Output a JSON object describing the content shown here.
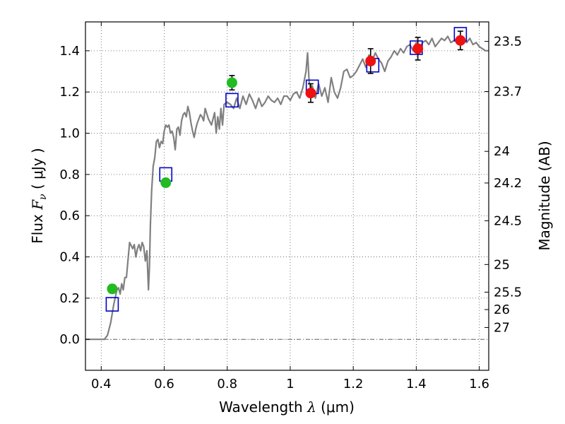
{
  "chart_data": {
    "type": "scatter",
    "xlabel": {
      "prefix": "Wavelength ",
      "symbol": "λ",
      "unit": " (μm)"
    },
    "ylabel": {
      "prefix": "Flux ",
      "symbol": "F",
      "subscript": "ν",
      "unit": " ( μJy )"
    },
    "y2label": "Magnitude (AB)",
    "xlim": [
      0.35,
      1.63
    ],
    "ylim": [
      -0.15,
      1.54
    ],
    "x_ticks": [
      {
        "value": 0.4,
        "label": "0.4"
      },
      {
        "value": 0.6,
        "label": "0.6"
      },
      {
        "value": 0.8,
        "label": "0.8"
      },
      {
        "value": 1.0,
        "label": "1"
      },
      {
        "value": 1.2,
        "label": "1.2"
      },
      {
        "value": 1.4,
        "label": "1.4"
      },
      {
        "value": 1.6,
        "label": "1.6"
      }
    ],
    "y_ticks": [
      {
        "value": 0.0,
        "label": "0.0"
      },
      {
        "value": 0.2,
        "label": "0.2"
      },
      {
        "value": 0.4,
        "label": "0.4"
      },
      {
        "value": 0.6,
        "label": "0.6"
      },
      {
        "value": 0.8,
        "label": "0.8"
      },
      {
        "value": 1.0,
        "label": "1.0"
      },
      {
        "value": 1.2,
        "label": "1.2"
      },
      {
        "value": 1.4,
        "label": "1.4"
      }
    ],
    "y2_ticks": [
      {
        "mag": 23.5,
        "label": "23.5"
      },
      {
        "mag": 23.7,
        "label": "23.7"
      },
      {
        "mag": 24.0,
        "label": "24"
      },
      {
        "mag": 24.2,
        "label": "24.2"
      },
      {
        "mag": 24.5,
        "label": "24.5"
      },
      {
        "mag": 25.0,
        "label": "25"
      },
      {
        "mag": 25.5,
        "label": "25.5"
      },
      {
        "mag": 26.0,
        "label": "26"
      },
      {
        "mag": 27.0,
        "label": "27"
      }
    ],
    "grid": true,
    "colors": {
      "spectrum": "#808080",
      "green_points": "#22bb22",
      "red_points": "#ee1111",
      "model_boxes": "#0000cc",
      "errorbar": "#000000"
    },
    "series": [
      {
        "kind": "line",
        "color": "#808080",
        "x": [
          0.35,
          0.37,
          0.39,
          0.41,
          0.42,
          0.43,
          0.44,
          0.45,
          0.455,
          0.46,
          0.465,
          0.47,
          0.475,
          0.48,
          0.49,
          0.5,
          0.505,
          0.51,
          0.515,
          0.52,
          0.525,
          0.53,
          0.535,
          0.54,
          0.545,
          0.55,
          0.553,
          0.556,
          0.56,
          0.565,
          0.57,
          0.575,
          0.58,
          0.585,
          0.59,
          0.595,
          0.6,
          0.605,
          0.61,
          0.615,
          0.62,
          0.625,
          0.63,
          0.635,
          0.64,
          0.645,
          0.65,
          0.655,
          0.66,
          0.665,
          0.67,
          0.675,
          0.68,
          0.685,
          0.69,
          0.695,
          0.7,
          0.705,
          0.71,
          0.715,
          0.72,
          0.725,
          0.73,
          0.74,
          0.75,
          0.76,
          0.765,
          0.77,
          0.775,
          0.78,
          0.785,
          0.79,
          0.8,
          0.81,
          0.82,
          0.83,
          0.84,
          0.85,
          0.86,
          0.87,
          0.88,
          0.89,
          0.9,
          0.91,
          0.92,
          0.93,
          0.94,
          0.95,
          0.96,
          0.97,
          0.98,
          0.99,
          1.0,
          1.01,
          1.02,
          1.03,
          1.04,
          1.05,
          1.055,
          1.06,
          1.065,
          1.07,
          1.08,
          1.09,
          1.1,
          1.11,
          1.12,
          1.13,
          1.14,
          1.15,
          1.16,
          1.17,
          1.18,
          1.19,
          1.2,
          1.21,
          1.22,
          1.23,
          1.24,
          1.25,
          1.26,
          1.27,
          1.28,
          1.29,
          1.3,
          1.31,
          1.32,
          1.33,
          1.34,
          1.35,
          1.36,
          1.37,
          1.38,
          1.39,
          1.4,
          1.41,
          1.42,
          1.43,
          1.44,
          1.45,
          1.46,
          1.47,
          1.48,
          1.49,
          1.5,
          1.51,
          1.52,
          1.53,
          1.54,
          1.55,
          1.56,
          1.57,
          1.58,
          1.59,
          1.6,
          1.61,
          1.62,
          1.63
        ],
        "y": [
          0.0,
          0.0,
          0.0,
          0.0,
          0.02,
          0.08,
          0.17,
          0.24,
          0.25,
          0.22,
          0.27,
          0.24,
          0.3,
          0.3,
          0.47,
          0.44,
          0.46,
          0.4,
          0.44,
          0.46,
          0.43,
          0.47,
          0.45,
          0.38,
          0.43,
          0.24,
          0.35,
          0.55,
          0.72,
          0.84,
          0.88,
          0.96,
          0.97,
          0.93,
          0.96,
          0.95,
          1.01,
          1.04,
          1.03,
          1.04,
          1.0,
          1.01,
          0.98,
          0.92,
          1.02,
          1.03,
          0.99,
          1.06,
          1.09,
          1.1,
          1.08,
          1.13,
          1.1,
          1.05,
          1.01,
          0.98,
          1.02,
          1.05,
          1.07,
          1.09,
          1.08,
          1.06,
          1.12,
          1.07,
          1.04,
          1.1,
          1.0,
          1.08,
          1.02,
          1.12,
          1.04,
          1.14,
          1.15,
          1.14,
          1.12,
          1.17,
          1.12,
          1.18,
          1.14,
          1.19,
          1.16,
          1.12,
          1.17,
          1.13,
          1.15,
          1.18,
          1.16,
          1.15,
          1.17,
          1.14,
          1.18,
          1.18,
          1.16,
          1.19,
          1.2,
          1.17,
          1.22,
          1.3,
          1.39,
          1.25,
          1.21,
          1.23,
          1.17,
          1.24,
          1.18,
          1.22,
          1.15,
          1.27,
          1.2,
          1.17,
          1.22,
          1.3,
          1.31,
          1.27,
          1.28,
          1.3,
          1.33,
          1.36,
          1.32,
          1.38,
          1.35,
          1.39,
          1.36,
          1.34,
          1.3,
          1.35,
          1.37,
          1.4,
          1.38,
          1.41,
          1.39,
          1.42,
          1.43,
          1.4,
          1.44,
          1.41,
          1.44,
          1.45,
          1.43,
          1.46,
          1.42,
          1.44,
          1.46,
          1.45,
          1.47,
          1.44,
          1.45,
          1.46,
          1.43,
          1.45,
          1.44,
          1.46,
          1.43,
          1.44,
          1.42,
          1.41,
          1.4,
          1.4
        ]
      },
      {
        "kind": "points",
        "color": "#22bb22",
        "points": [
          {
            "x": 0.435,
            "y": 0.245,
            "err": 0.02
          },
          {
            "x": 0.605,
            "y": 0.76,
            "err": 0.015
          },
          {
            "x": 0.815,
            "y": 1.245,
            "err": 0.035
          }
        ]
      },
      {
        "kind": "points",
        "color": "#ee1111",
        "points": [
          {
            "x": 1.065,
            "y": 1.195,
            "err": 0.045
          },
          {
            "x": 1.255,
            "y": 1.35,
            "err": 0.06
          },
          {
            "x": 1.405,
            "y": 1.41,
            "err": 0.055
          },
          {
            "x": 1.54,
            "y": 1.45,
            "err": 0.045
          }
        ]
      },
      {
        "kind": "boxes",
        "color": "#0000cc",
        "points": [
          {
            "x": 0.435,
            "y": 0.17
          },
          {
            "x": 0.605,
            "y": 0.8
          },
          {
            "x": 0.815,
            "y": 1.16
          },
          {
            "x": 1.07,
            "y": 1.225
          },
          {
            "x": 1.262,
            "y": 1.33
          },
          {
            "x": 1.4,
            "y": 1.415
          },
          {
            "x": 1.54,
            "y": 1.48
          }
        ]
      }
    ]
  }
}
